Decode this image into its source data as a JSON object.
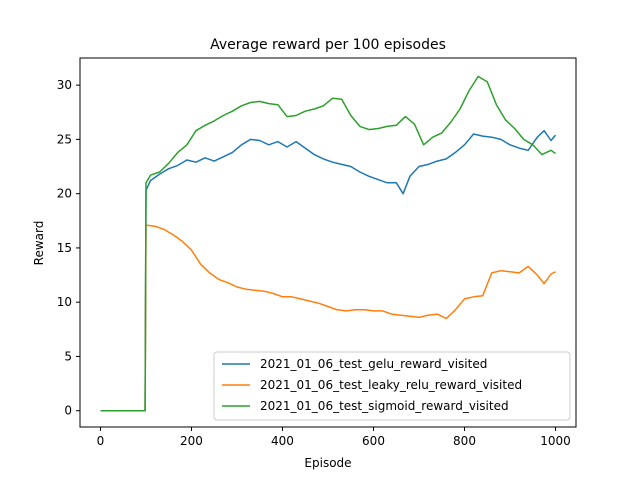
{
  "chart_data": {
    "type": "line",
    "title": "Average reward per 100 episodes",
    "xlabel": "Episode",
    "ylabel": "Reward",
    "xlim": [
      -45,
      1045
    ],
    "ylim": [
      -1.5,
      32.5
    ],
    "xticks": [
      0,
      200,
      400,
      600,
      800,
      1000
    ],
    "yticks": [
      0,
      5,
      10,
      15,
      20,
      25,
      30
    ],
    "legend_position": "lower right",
    "grid": false,
    "series": [
      {
        "name": "2021_01_06_test_gelu_reward_visited",
        "color": "#1f77b4",
        "points": [
          [
            0,
            0
          ],
          [
            98,
            0
          ],
          [
            100,
            20.3
          ],
          [
            110,
            21.2
          ],
          [
            130,
            21.8
          ],
          [
            150,
            22.3
          ],
          [
            170,
            22.6
          ],
          [
            190,
            23.1
          ],
          [
            210,
            22.9
          ],
          [
            230,
            23.3
          ],
          [
            250,
            23.0
          ],
          [
            270,
            23.4
          ],
          [
            290,
            23.8
          ],
          [
            310,
            24.5
          ],
          [
            330,
            25.0
          ],
          [
            350,
            24.9
          ],
          [
            370,
            24.5
          ],
          [
            390,
            24.8
          ],
          [
            410,
            24.3
          ],
          [
            430,
            24.8
          ],
          [
            450,
            24.2
          ],
          [
            470,
            23.6
          ],
          [
            490,
            23.2
          ],
          [
            510,
            22.9
          ],
          [
            530,
            22.7
          ],
          [
            550,
            22.5
          ],
          [
            570,
            22.0
          ],
          [
            590,
            21.6
          ],
          [
            610,
            21.3
          ],
          [
            630,
            21.0
          ],
          [
            650,
            21.0
          ],
          [
            665,
            20.0
          ],
          [
            680,
            21.6
          ],
          [
            700,
            22.5
          ],
          [
            720,
            22.7
          ],
          [
            740,
            23.0
          ],
          [
            760,
            23.2
          ],
          [
            780,
            23.8
          ],
          [
            800,
            24.5
          ],
          [
            820,
            25.5
          ],
          [
            840,
            25.3
          ],
          [
            860,
            25.2
          ],
          [
            880,
            25.0
          ],
          [
            900,
            24.5
          ],
          [
            920,
            24.2
          ],
          [
            940,
            24.0
          ],
          [
            960,
            25.2
          ],
          [
            975,
            25.8
          ],
          [
            990,
            24.9
          ],
          [
            1000,
            25.4
          ]
        ]
      },
      {
        "name": "2021_01_06_test_leaky_relu_reward_visited",
        "color": "#ff7f0e",
        "points": [
          [
            0,
            0
          ],
          [
            98,
            0
          ],
          [
            100,
            17.1
          ],
          [
            120,
            17.0
          ],
          [
            140,
            16.7
          ],
          [
            160,
            16.2
          ],
          [
            180,
            15.6
          ],
          [
            200,
            14.8
          ],
          [
            220,
            13.5
          ],
          [
            240,
            12.7
          ],
          [
            260,
            12.1
          ],
          [
            280,
            11.8
          ],
          [
            300,
            11.4
          ],
          [
            320,
            11.2
          ],
          [
            340,
            11.1
          ],
          [
            360,
            11.0
          ],
          [
            380,
            10.8
          ],
          [
            400,
            10.5
          ],
          [
            420,
            10.5
          ],
          [
            440,
            10.3
          ],
          [
            460,
            10.1
          ],
          [
            480,
            9.9
          ],
          [
            500,
            9.6
          ],
          [
            520,
            9.3
          ],
          [
            540,
            9.2
          ],
          [
            560,
            9.3
          ],
          [
            580,
            9.3
          ],
          [
            600,
            9.2
          ],
          [
            620,
            9.2
          ],
          [
            640,
            8.9
          ],
          [
            660,
            8.8
          ],
          [
            680,
            8.7
          ],
          [
            700,
            8.6
          ],
          [
            720,
            8.8
          ],
          [
            740,
            8.9
          ],
          [
            760,
            8.5
          ],
          [
            780,
            9.3
          ],
          [
            800,
            10.3
          ],
          [
            820,
            10.5
          ],
          [
            840,
            10.6
          ],
          [
            860,
            12.7
          ],
          [
            880,
            12.9
          ],
          [
            900,
            12.8
          ],
          [
            920,
            12.7
          ],
          [
            940,
            13.3
          ],
          [
            960,
            12.5
          ],
          [
            975,
            11.7
          ],
          [
            990,
            12.6
          ],
          [
            1000,
            12.8
          ]
        ]
      },
      {
        "name": "2021_01_06_test_sigmoid_reward_visited",
        "color": "#2ca02c",
        "points": [
          [
            0,
            0
          ],
          [
            98,
            0
          ],
          [
            100,
            21.0
          ],
          [
            110,
            21.7
          ],
          [
            130,
            22.0
          ],
          [
            150,
            22.8
          ],
          [
            170,
            23.8
          ],
          [
            190,
            24.5
          ],
          [
            210,
            25.8
          ],
          [
            230,
            26.3
          ],
          [
            250,
            26.7
          ],
          [
            270,
            27.2
          ],
          [
            290,
            27.6
          ],
          [
            310,
            28.1
          ],
          [
            330,
            28.4
          ],
          [
            350,
            28.5
          ],
          [
            370,
            28.3
          ],
          [
            390,
            28.2
          ],
          [
            410,
            27.1
          ],
          [
            430,
            27.2
          ],
          [
            450,
            27.6
          ],
          [
            470,
            27.8
          ],
          [
            490,
            28.1
          ],
          [
            510,
            28.8
          ],
          [
            530,
            28.7
          ],
          [
            550,
            27.2
          ],
          [
            570,
            26.2
          ],
          [
            590,
            25.9
          ],
          [
            610,
            26.0
          ],
          [
            630,
            26.2
          ],
          [
            650,
            26.3
          ],
          [
            670,
            27.1
          ],
          [
            690,
            26.4
          ],
          [
            710,
            24.5
          ],
          [
            730,
            25.2
          ],
          [
            750,
            25.6
          ],
          [
            770,
            26.6
          ],
          [
            790,
            27.8
          ],
          [
            810,
            29.5
          ],
          [
            830,
            30.8
          ],
          [
            850,
            30.3
          ],
          [
            870,
            28.2
          ],
          [
            890,
            26.8
          ],
          [
            910,
            26.0
          ],
          [
            930,
            25.0
          ],
          [
            950,
            24.5
          ],
          [
            970,
            23.6
          ],
          [
            990,
            24.0
          ],
          [
            1000,
            23.7
          ]
        ]
      }
    ]
  }
}
